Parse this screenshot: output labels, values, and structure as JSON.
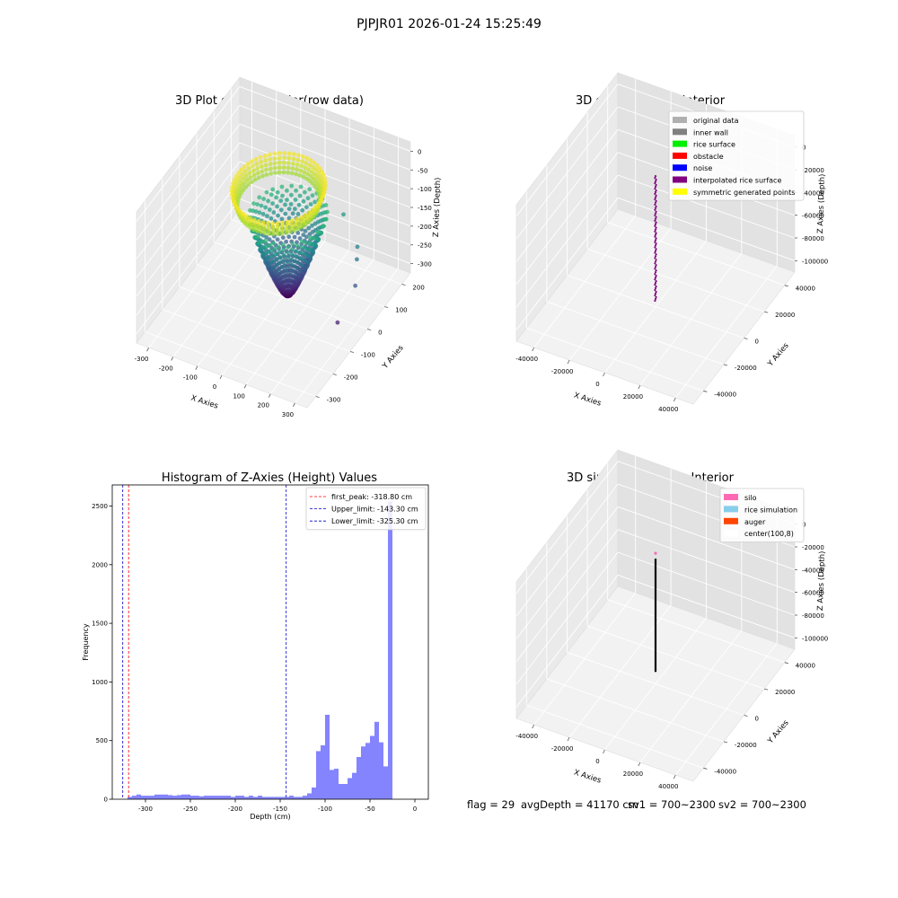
{
  "figure_title": "PJPJR01 2026-01-24 15:25:49",
  "footer": {
    "flag": "flag = 29",
    "avg_depth": "avgDepth = 41170 cm",
    "sv1": "sv1 = 700~2300",
    "sv2": "sv2 = 700~2300"
  },
  "colors": {
    "hist_bar": "#5050ff",
    "first_peak_line": "#ff0000",
    "limit_line": "#0000cc",
    "pane_left": "#eaeaea",
    "pane_right": "#e2e2e2",
    "pane_floor": "#f2f2f2"
  },
  "chart_data": [
    {
      "type": "scatter",
      "subtype": "3d",
      "title": "3D Plot of Silo Interior(row data)",
      "xlabel": "X Axies",
      "ylabel": "Y Axies",
      "zlabel": "Z Axies (Depth)",
      "xlim": [
        -330,
        330
      ],
      "ylim": [
        -330,
        330
      ],
      "zlim": [
        -330,
        20
      ],
      "xticks": [
        "-300",
        "-200",
        "-100",
        "0",
        "100",
        "200",
        "300"
      ],
      "yticks": [
        "-300",
        "-200",
        "-100",
        "0",
        "100",
        "200"
      ],
      "zticks": [
        "0",
        "-50",
        "-100",
        "-150",
        "-200",
        "-250",
        "-300"
      ],
      "colormap": "viridis",
      "description_note": "",
      "series": [
        {
          "shape": "ring",
          "cx": 20,
          "cy": 0,
          "r": 155,
          "z_min": -45,
          "z_max": -5
        },
        {
          "shape": "cone",
          "cx": 20,
          "cy": 60,
          "r_top": 120,
          "z_min": -320,
          "z_max": -110
        }
      ],
      "outliers": [
        [
          250,
          120,
          -200
        ],
        [
          280,
          60,
          -230
        ],
        [
          260,
          -20,
          -290
        ],
        [
          150,
          200,
          -150
        ],
        [
          240,
          140,
          -180
        ]
      ]
    },
    {
      "type": "scatter",
      "subtype": "3d",
      "title": "3D classify of Silo Interior",
      "xlabel": "X Axies",
      "ylabel": "Y Axies",
      "zlabel": "Z Axies (Depth)",
      "xlim": [
        -50000,
        50000
      ],
      "ylim": [
        -50000,
        50000
      ],
      "zlim": [
        -110000,
        5000
      ],
      "xticks": [
        "-40000",
        "-20000",
        "0",
        "20000",
        "40000"
      ],
      "yticks": [
        "-40000",
        "-20000",
        "0",
        "20000",
        "40000"
      ],
      "zticks": [
        "0",
        "-20000",
        "-40000",
        "-60000",
        "-80000",
        "-100000"
      ],
      "legend": [
        {
          "label": "original data",
          "color": "#b0b0b0"
        },
        {
          "label": "inner wall",
          "color": "#808080"
        },
        {
          "label": "rice surface",
          "color": "#00ee00"
        },
        {
          "label": "obstacle",
          "color": "#ff0000"
        },
        {
          "label": "noise",
          "color": "#0000ff"
        },
        {
          "label": "interpolated rice surface",
          "color": "#800080"
        },
        {
          "label": "symmetric generated points",
          "color": "#ffff00"
        }
      ],
      "legend_loc": "upper right",
      "column": {
        "x": 0,
        "y": 0,
        "z_min": -105000,
        "z_max": 0,
        "color": "#800080"
      }
    },
    {
      "type": "bar",
      "subtype": "histogram",
      "title": "Histogram of Z-Axies (Height) Values",
      "xlabel": "Depth (cm)",
      "ylabel": "Frequency",
      "xlim": [
        -337,
        15
      ],
      "ylim": [
        0,
        2680
      ],
      "xticks": [
        -300,
        -250,
        -200,
        -150,
        -100,
        -50,
        0
      ],
      "yticks": [
        0,
        500,
        1000,
        1500,
        2000,
        2500
      ],
      "bin_width": 5,
      "bins": [
        {
          "x": -320,
          "count": 20
        },
        {
          "x": -315,
          "count": 30
        },
        {
          "x": -310,
          "count": 40
        },
        {
          "x": -305,
          "count": 30
        },
        {
          "x": -300,
          "count": 30
        },
        {
          "x": -295,
          "count": 30
        },
        {
          "x": -290,
          "count": 40
        },
        {
          "x": -285,
          "count": 40
        },
        {
          "x": -280,
          "count": 40
        },
        {
          "x": -275,
          "count": 35
        },
        {
          "x": -270,
          "count": 30
        },
        {
          "x": -265,
          "count": 35
        },
        {
          "x": -260,
          "count": 40
        },
        {
          "x": -255,
          "count": 40
        },
        {
          "x": -250,
          "count": 30
        },
        {
          "x": -245,
          "count": 30
        },
        {
          "x": -240,
          "count": 25
        },
        {
          "x": -235,
          "count": 30
        },
        {
          "x": -230,
          "count": 30
        },
        {
          "x": -225,
          "count": 30
        },
        {
          "x": -220,
          "count": 30
        },
        {
          "x": -215,
          "count": 30
        },
        {
          "x": -210,
          "count": 30
        },
        {
          "x": -205,
          "count": 20
        },
        {
          "x": -200,
          "count": 30
        },
        {
          "x": -195,
          "count": 30
        },
        {
          "x": -190,
          "count": 20
        },
        {
          "x": -185,
          "count": 30
        },
        {
          "x": -180,
          "count": 20
        },
        {
          "x": -175,
          "count": 30
        },
        {
          "x": -170,
          "count": 20
        },
        {
          "x": -165,
          "count": 20
        },
        {
          "x": -160,
          "count": 20
        },
        {
          "x": -155,
          "count": 20
        },
        {
          "x": -150,
          "count": 20
        },
        {
          "x": -145,
          "count": 20
        },
        {
          "x": -140,
          "count": 30
        },
        {
          "x": -135,
          "count": 20
        },
        {
          "x": -130,
          "count": 20
        },
        {
          "x": -125,
          "count": 30
        },
        {
          "x": -120,
          "count": 50
        },
        {
          "x": -115,
          "count": 100
        },
        {
          "x": -110,
          "count": 410
        },
        {
          "x": -105,
          "count": 460
        },
        {
          "x": -100,
          "count": 720
        },
        {
          "x": -95,
          "count": 250
        },
        {
          "x": -90,
          "count": 260
        },
        {
          "x": -85,
          "count": 130
        },
        {
          "x": -80,
          "count": 130
        },
        {
          "x": -75,
          "count": 180
        },
        {
          "x": -70,
          "count": 225
        },
        {
          "x": -65,
          "count": 360
        },
        {
          "x": -60,
          "count": 450
        },
        {
          "x": -55,
          "count": 480
        },
        {
          "x": -50,
          "count": 540
        },
        {
          "x": -45,
          "count": 660
        },
        {
          "x": -40,
          "count": 485
        },
        {
          "x": -35,
          "count": 280
        },
        {
          "x": -30,
          "count": 2540
        }
      ],
      "vlines": [
        {
          "label": "first_peak: -318.80 cm",
          "x": -318.8,
          "color": "#ff0000"
        },
        {
          "label": "Upper_limit: -143.30 cm",
          "x": -143.3,
          "color": "#0000cc"
        },
        {
          "label": "Lower_limit: -325.30 cm",
          "x": -325.3,
          "color": "#0000cc"
        }
      ],
      "legend_loc": "upper right"
    },
    {
      "type": "scatter",
      "subtype": "3d",
      "title": "3D simulation of Silo Interior",
      "xlabel": "X Axies",
      "ylabel": "Y Axies",
      "zlabel": "Z Axies (Depth)",
      "xlim": [
        -50000,
        50000
      ],
      "ylim": [
        -50000,
        50000
      ],
      "zlim": [
        -110000,
        5000
      ],
      "xticks": [
        "-40000",
        "-20000",
        "0",
        "20000",
        "40000"
      ],
      "yticks": [
        "-40000",
        "-20000",
        "0",
        "20000",
        "40000"
      ],
      "zticks": [
        "0",
        "-20000",
        "-40000",
        "-60000",
        "-80000",
        "-100000"
      ],
      "legend": [
        {
          "label": "silo",
          "color": "#ff69b4"
        },
        {
          "label": "rice simulation",
          "color": "#87ceeb"
        },
        {
          "label": "auger",
          "color": "#ff4500"
        },
        {
          "label": "center(100,8)",
          "color": "#ffffff"
        }
      ],
      "legend_loc": "upper right",
      "column": {
        "x": 0,
        "y": 0,
        "z_min": -100000,
        "z_max": 0,
        "color": "#000000"
      }
    }
  ]
}
